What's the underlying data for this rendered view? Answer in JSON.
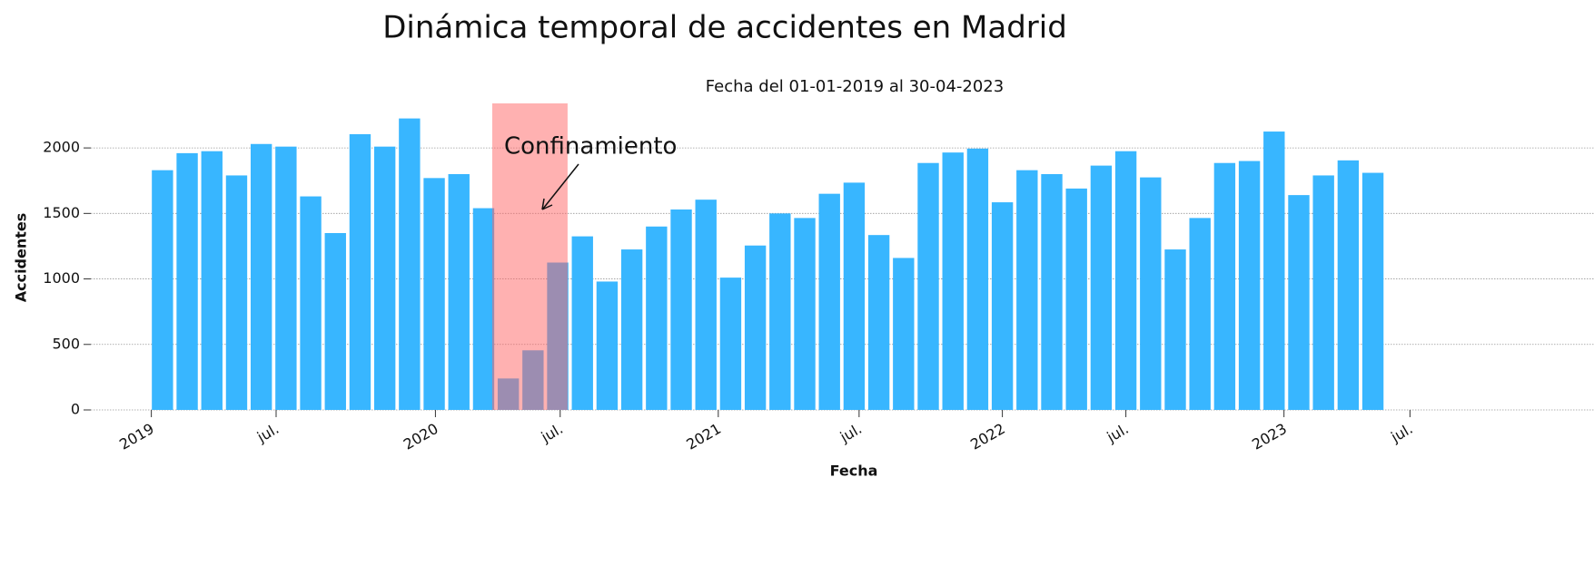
{
  "chart_data": {
    "type": "bar",
    "title": "Dinámica temporal de accidentes en Madrid",
    "subtitle": "Fecha del 01-01-2019 al 30-04-2023",
    "x_label": "Fecha",
    "y_label": "Accidentes",
    "annotation": "Confinamiento",
    "color": "#38b6ff",
    "span": [
      13.35,
      16.4
    ],
    "span_color": "#ff6464",
    "categories": [
      null,
      null,
      null,
      null,
      null,
      null,
      null,
      null,
      null,
      null,
      null,
      null,
      null,
      null,
      null,
      null,
      null,
      null,
      null,
      null,
      null,
      null,
      null,
      null,
      null,
      null,
      null,
      null,
      null,
      null,
      null,
      null,
      null,
      null,
      null,
      null,
      null,
      null,
      null,
      null,
      null,
      null,
      null,
      null,
      null,
      null,
      null,
      null,
      null,
      null
    ],
    "values": [
      1830,
      1960,
      1975,
      1790,
      2030,
      2010,
      1630,
      1350,
      2105,
      2010,
      2225,
      1770,
      1800,
      1540,
      240,
      455,
      1125,
      1325,
      980,
      1225,
      1400,
      1530,
      1605,
      1010,
      1255,
      1500,
      1465,
      1650,
      1735,
      1335,
      1160,
      1885,
      1965,
      1995,
      1585,
      1830,
      1800,
      1690,
      1865,
      1975,
      1775,
      1225,
      1465,
      1885,
      1900,
      2125,
      1640,
      1790,
      1905,
      1810
    ],
    "xlim": [
      -2.9,
      57.95
    ],
    "xticks": [
      {
        "value": -0.45,
        "label": "2019"
      },
      {
        "value": 4.6,
        "label": "jul."
      },
      {
        "value": 11.05,
        "label": "2020"
      },
      {
        "value": 16.1,
        "label": "jul."
      },
      {
        "value": 22.5,
        "label": "2021"
      },
      {
        "value": 28.2,
        "label": "jul."
      },
      {
        "value": 34.0,
        "label": "2022"
      },
      {
        "value": 39.0,
        "label": "jul."
      },
      {
        "value": 45.4,
        "label": "2023"
      },
      {
        "value": 50.5,
        "label": "jul."
      }
    ],
    "ylim": [
      0,
      2340
    ],
    "yticks": [
      0,
      500,
      1000,
      1500,
      2000
    ],
    "grid": true
  }
}
